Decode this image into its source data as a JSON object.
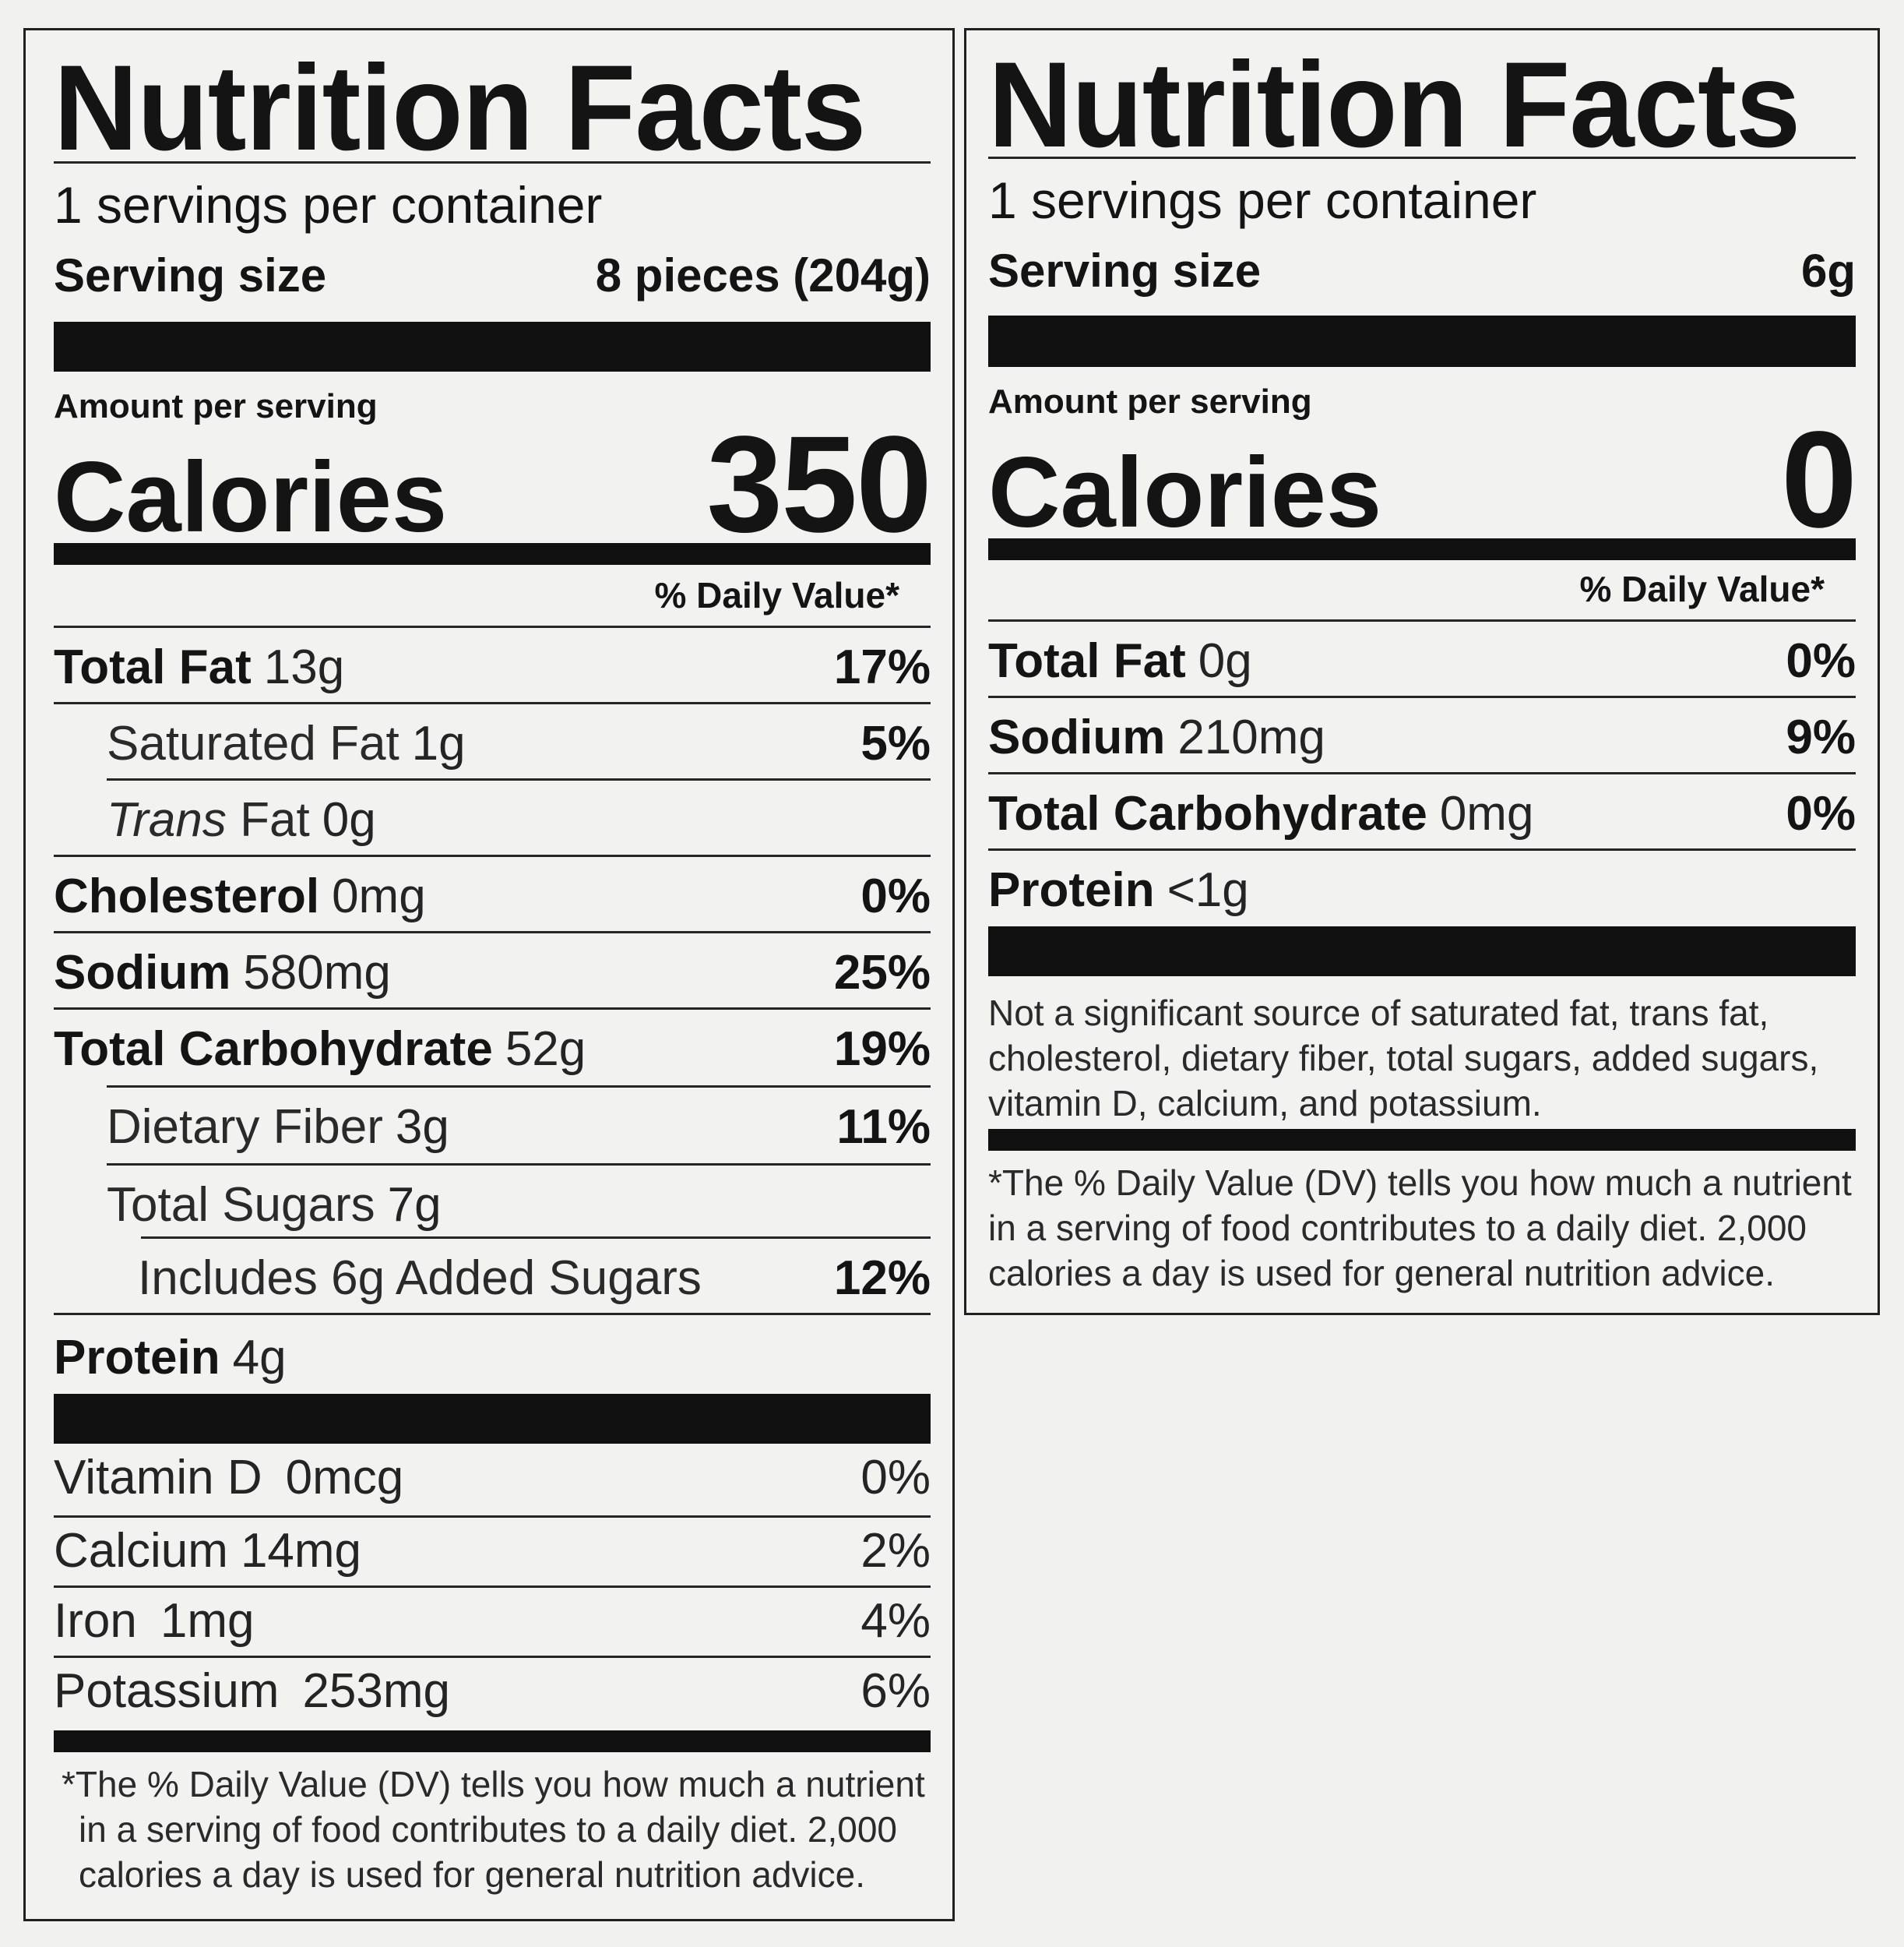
{
  "left": {
    "title": "Nutrition Facts",
    "servings": "1 servings per container",
    "serving_size_label": "Serving size",
    "serving_size_value": "8 pieces (204g)",
    "amount_per_serving": "Amount per serving",
    "calories_label": "Calories",
    "calories_value": "350",
    "daily_value_header": "% Daily Value*",
    "nutrients": [
      {
        "name": "Total Fat",
        "amount": "13g",
        "pct": "17%"
      },
      {
        "name": "Saturated Fat",
        "amount": "1g",
        "pct": "5%"
      },
      {
        "name": "Trans",
        "name_rest": "Fat",
        "amount": "0g",
        "pct": ""
      },
      {
        "name": "Cholesterol",
        "amount": "0mg",
        "pct": "0%"
      },
      {
        "name": "Sodium",
        "amount": "580mg",
        "pct": "25%"
      },
      {
        "name": "Total Carbohydrate",
        "amount": "52g",
        "pct": "19%"
      },
      {
        "name": "Dietary Fiber",
        "amount": "3g",
        "pct": "11%"
      },
      {
        "name": "Total Sugars",
        "amount": "7g",
        "pct": ""
      },
      {
        "name": "Includes 6g Added Sugars",
        "amount": "",
        "pct": "12%"
      },
      {
        "name": "Protein",
        "amount": "4g",
        "pct": ""
      }
    ],
    "vitamins": [
      {
        "name": "Vitamin D",
        "amount": "0mcg",
        "pct": "0%"
      },
      {
        "name": "Calcium",
        "amount": "14mg",
        "pct": "2%"
      },
      {
        "name": "Iron",
        "amount": "1mg",
        "pct": "4%"
      },
      {
        "name": "Potassium",
        "amount": "253mg",
        "pct": "6%"
      }
    ],
    "footnote": [
      "*The % Daily Value (DV) tells you how much a nutrient",
      "in a serving of food contributes to a daily diet. 2,000",
      "calories a day is used for general nutrition advice."
    ]
  },
  "right": {
    "title": "Nutrition Facts",
    "servings": "1 servings per container",
    "serving_size_label": "Serving size",
    "serving_size_value": "6g",
    "amount_per_serving": "Amount per serving",
    "calories_label": "Calories",
    "calories_value": "0",
    "daily_value_header": "% Daily Value*",
    "nutrients": [
      {
        "name": "Total Fat",
        "amount": "0g",
        "pct": "0%"
      },
      {
        "name": "Sodium",
        "amount": "210mg",
        "pct": "9%"
      },
      {
        "name": "Total Carbohydrate",
        "amount": "0mg",
        "pct": "0%"
      },
      {
        "name": "Protein",
        "amount": "<1g",
        "pct": ""
      }
    ],
    "note": [
      "Not a significant source of saturated fat, trans fat,",
      "cholesterol, dietary fiber, total sugars, added sugars,",
      "vitamin D, calcium, and potassium."
    ],
    "footnote": [
      "*The % Daily Value (DV) tells you how much a nutrient",
      "in a serving of food contributes to a daily diet. 2,000",
      "calories a day is used for general nutrition advice."
    ]
  }
}
